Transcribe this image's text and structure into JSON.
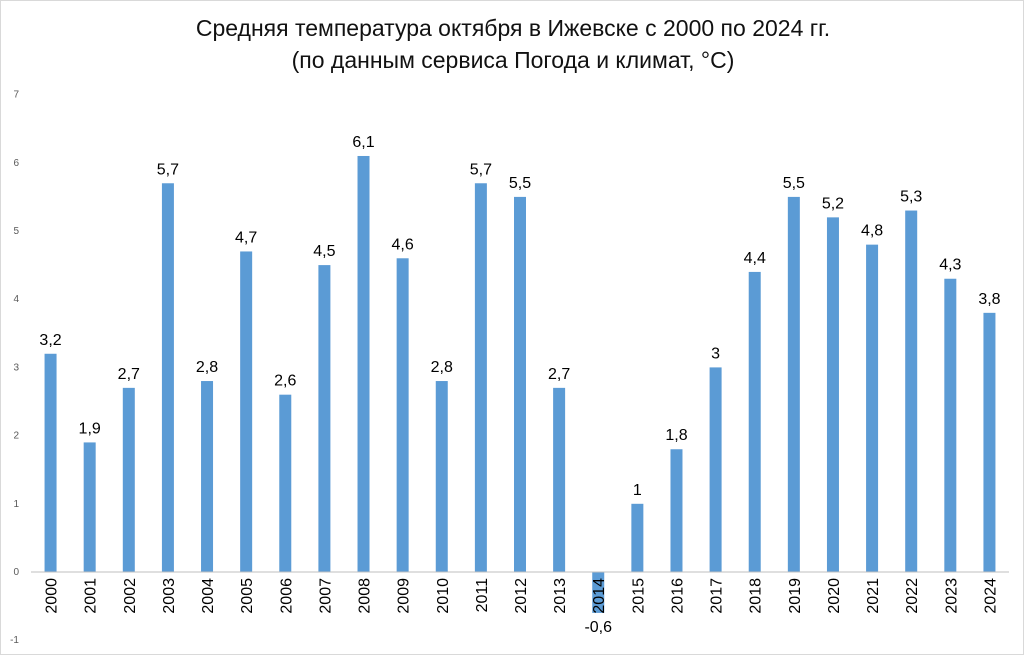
{
  "chart_data": {
    "type": "bar",
    "title_line1": "Средняя температура октября в Ижевске с 2000 по 2024 гг.",
    "title_line2": "(по данным сервиса Погода и климат, °C)",
    "xlabel": "",
    "ylabel": "",
    "categories": [
      "2000",
      "2001",
      "2002",
      "2003",
      "2004",
      "2005",
      "2006",
      "2007",
      "2008",
      "2009",
      "2010",
      "2011",
      "2012",
      "2013",
      "2014",
      "2015",
      "2016",
      "2017",
      "2018",
      "2019",
      "2020",
      "2021",
      "2022",
      "2023",
      "2024"
    ],
    "values": [
      3.2,
      1.9,
      2.7,
      5.7,
      2.8,
      4.7,
      2.6,
      4.5,
      6.1,
      4.6,
      2.8,
      5.7,
      5.5,
      2.7,
      -0.6,
      1,
      1.8,
      3,
      4.4,
      5.5,
      5.2,
      4.8,
      5.3,
      4.3,
      3.8
    ],
    "data_labels": [
      "3,2",
      "1,9",
      "2,7",
      "5,7",
      "2,8",
      "4,7",
      "2,6",
      "4,5",
      "6,1",
      "4,6",
      "2,8",
      "5,7",
      "5,5",
      "2,7",
      "-0,6",
      "1",
      "1,8",
      "3",
      "4,4",
      "5,5",
      "5,2",
      "4,8",
      "5,3",
      "4,3",
      "3,8"
    ],
    "yticks": [
      -1,
      0,
      1,
      2,
      3,
      4,
      5,
      6,
      7
    ],
    "ytick_labels": [
      "-1",
      "0",
      "1",
      "2",
      "3",
      "4",
      "5",
      "6",
      "7"
    ],
    "ylim": [
      -1,
      7
    ],
    "grid": false,
    "legend": "none",
    "bar_color": "#5b9bd5",
    "axis_color": "#bfbfbf"
  }
}
